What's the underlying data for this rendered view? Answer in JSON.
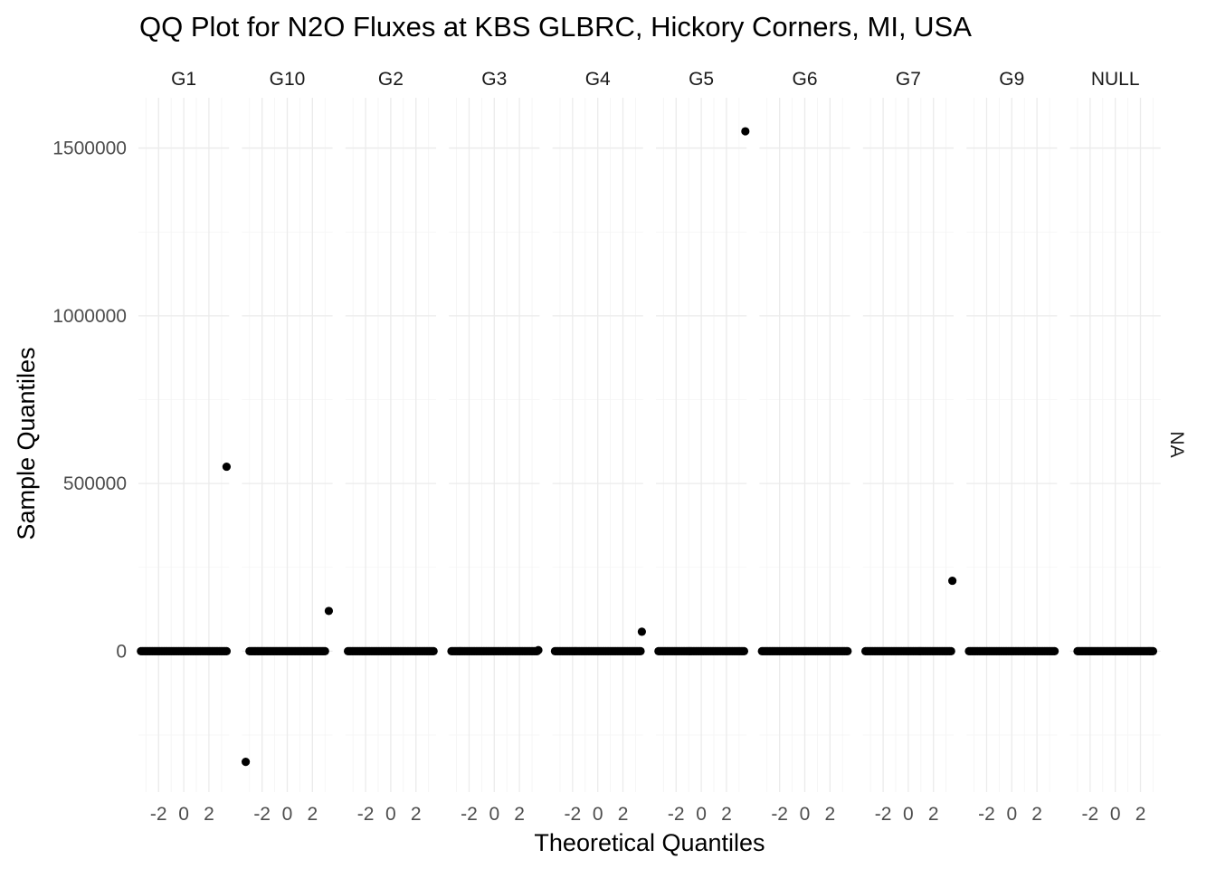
{
  "chart_data": {
    "type": "scatter",
    "title": "QQ Plot for N2O Fluxes at KBS GLBRC, Hickory Corners, MI, USA",
    "xlabel": "Theoretical Quantiles",
    "ylabel": "Sample Quantiles",
    "facet_row_label": "NA",
    "ylim": [
      -420000,
      1650000
    ],
    "xlim": [
      -3.6,
      3.6
    ],
    "y_ticks": [
      0,
      500000,
      1000000,
      1500000
    ],
    "y_tick_labels": [
      "0",
      "500000",
      "1000000",
      "1500000"
    ],
    "x_ticks": [
      -2,
      0,
      2
    ],
    "x_tick_labels": [
      "-2",
      "0",
      "2"
    ],
    "grid": true,
    "marker_color": "#000000",
    "panels": [
      {
        "name": "G1",
        "x_range": [
          -3.4,
          3.4
        ],
        "outliers": [
          {
            "x": 3.4,
            "y": 550000
          }
        ]
      },
      {
        "name": "G10",
        "x_range": [
          -3.0,
          3.0
        ],
        "outliers": [
          {
            "x": -3.3,
            "y": -330000
          },
          {
            "x": 3.3,
            "y": 120000
          }
        ]
      },
      {
        "name": "G2",
        "x_range": [
          -3.4,
          3.4
        ],
        "outliers": []
      },
      {
        "name": "G3",
        "x_range": [
          -3.4,
          3.4
        ],
        "outliers": [
          {
            "x": 3.5,
            "y": 3000
          }
        ]
      },
      {
        "name": "G4",
        "x_range": [
          -3.4,
          3.4
        ],
        "outliers": [
          {
            "x": 3.5,
            "y": 58000
          }
        ]
      },
      {
        "name": "G5",
        "x_range": [
          -3.4,
          3.4
        ],
        "outliers": [
          {
            "x": 3.5,
            "y": 1550000
          }
        ]
      },
      {
        "name": "G6",
        "x_range": [
          -3.4,
          3.4
        ],
        "outliers": []
      },
      {
        "name": "G7",
        "x_range": [
          -3.4,
          3.4
        ],
        "outliers": [
          {
            "x": 3.5,
            "y": 210000
          }
        ]
      },
      {
        "name": "G9",
        "x_range": [
          -3.4,
          3.4
        ],
        "outliers": []
      },
      {
        "name": "NULL",
        "x_range": [
          -3.0,
          3.0
        ],
        "outliers": []
      }
    ]
  }
}
